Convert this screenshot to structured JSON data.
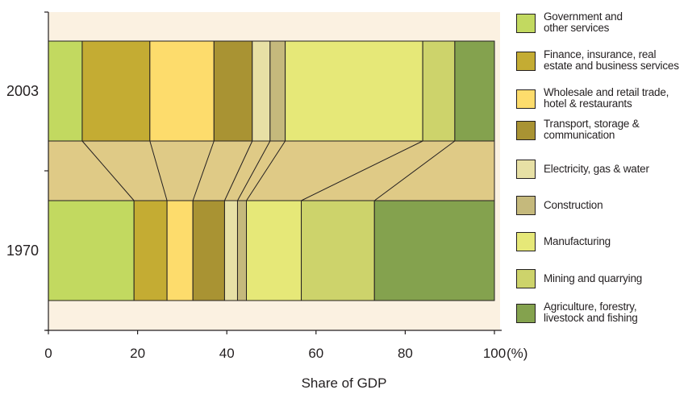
{
  "chart_data": {
    "type": "bar",
    "subtype": "100% stacked horizontal bar with connector band",
    "categories": [
      "2003",
      "1970"
    ],
    "xlabel": "Share of GDP",
    "xunit": "(%)",
    "xlim": [
      0,
      100
    ],
    "xticks": [
      "0",
      "20",
      "40",
      "60",
      "80",
      "100"
    ],
    "grid": false,
    "legend_position": "right",
    "series": [
      {
        "name": "Government and\nother services",
        "color": "#c2d960",
        "values": [
          7.6,
          19.2
        ]
      },
      {
        "name": "Finance, insurance, real\nestate and business services",
        "color": "#c4ac33",
        "values": [
          15.2,
          7.4
        ]
      },
      {
        "name": "Wholesale and retail trade,\nhotel & restaurants",
        "color": "#fddc6c",
        "values": [
          14.4,
          5.8
        ]
      },
      {
        "name": "Transport, storage &\ncommunication",
        "color": "#a99333",
        "values": [
          8.6,
          7.1
        ]
      },
      {
        "name": "Electricity, gas & water",
        "color": "#e7e0a5",
        "values": [
          4.0,
          2.9
        ]
      },
      {
        "name": "Construction",
        "color": "#c5b97c",
        "values": [
          3.4,
          2.0
        ]
      },
      {
        "name": "Manufacturing",
        "color": "#e6e878",
        "values": [
          30.9,
          12.3
        ]
      },
      {
        "name": "Mining and quarrying",
        "color": "#cdd36b",
        "values": [
          7.2,
          16.4
        ]
      },
      {
        "name": "Agriculture, forestry,\nlivestock and fishing",
        "color": "#84a24e",
        "values": [
          8.9,
          26.9
        ]
      }
    ],
    "connector_color": "#dfca86",
    "plot_background": "#fbf1e1"
  }
}
